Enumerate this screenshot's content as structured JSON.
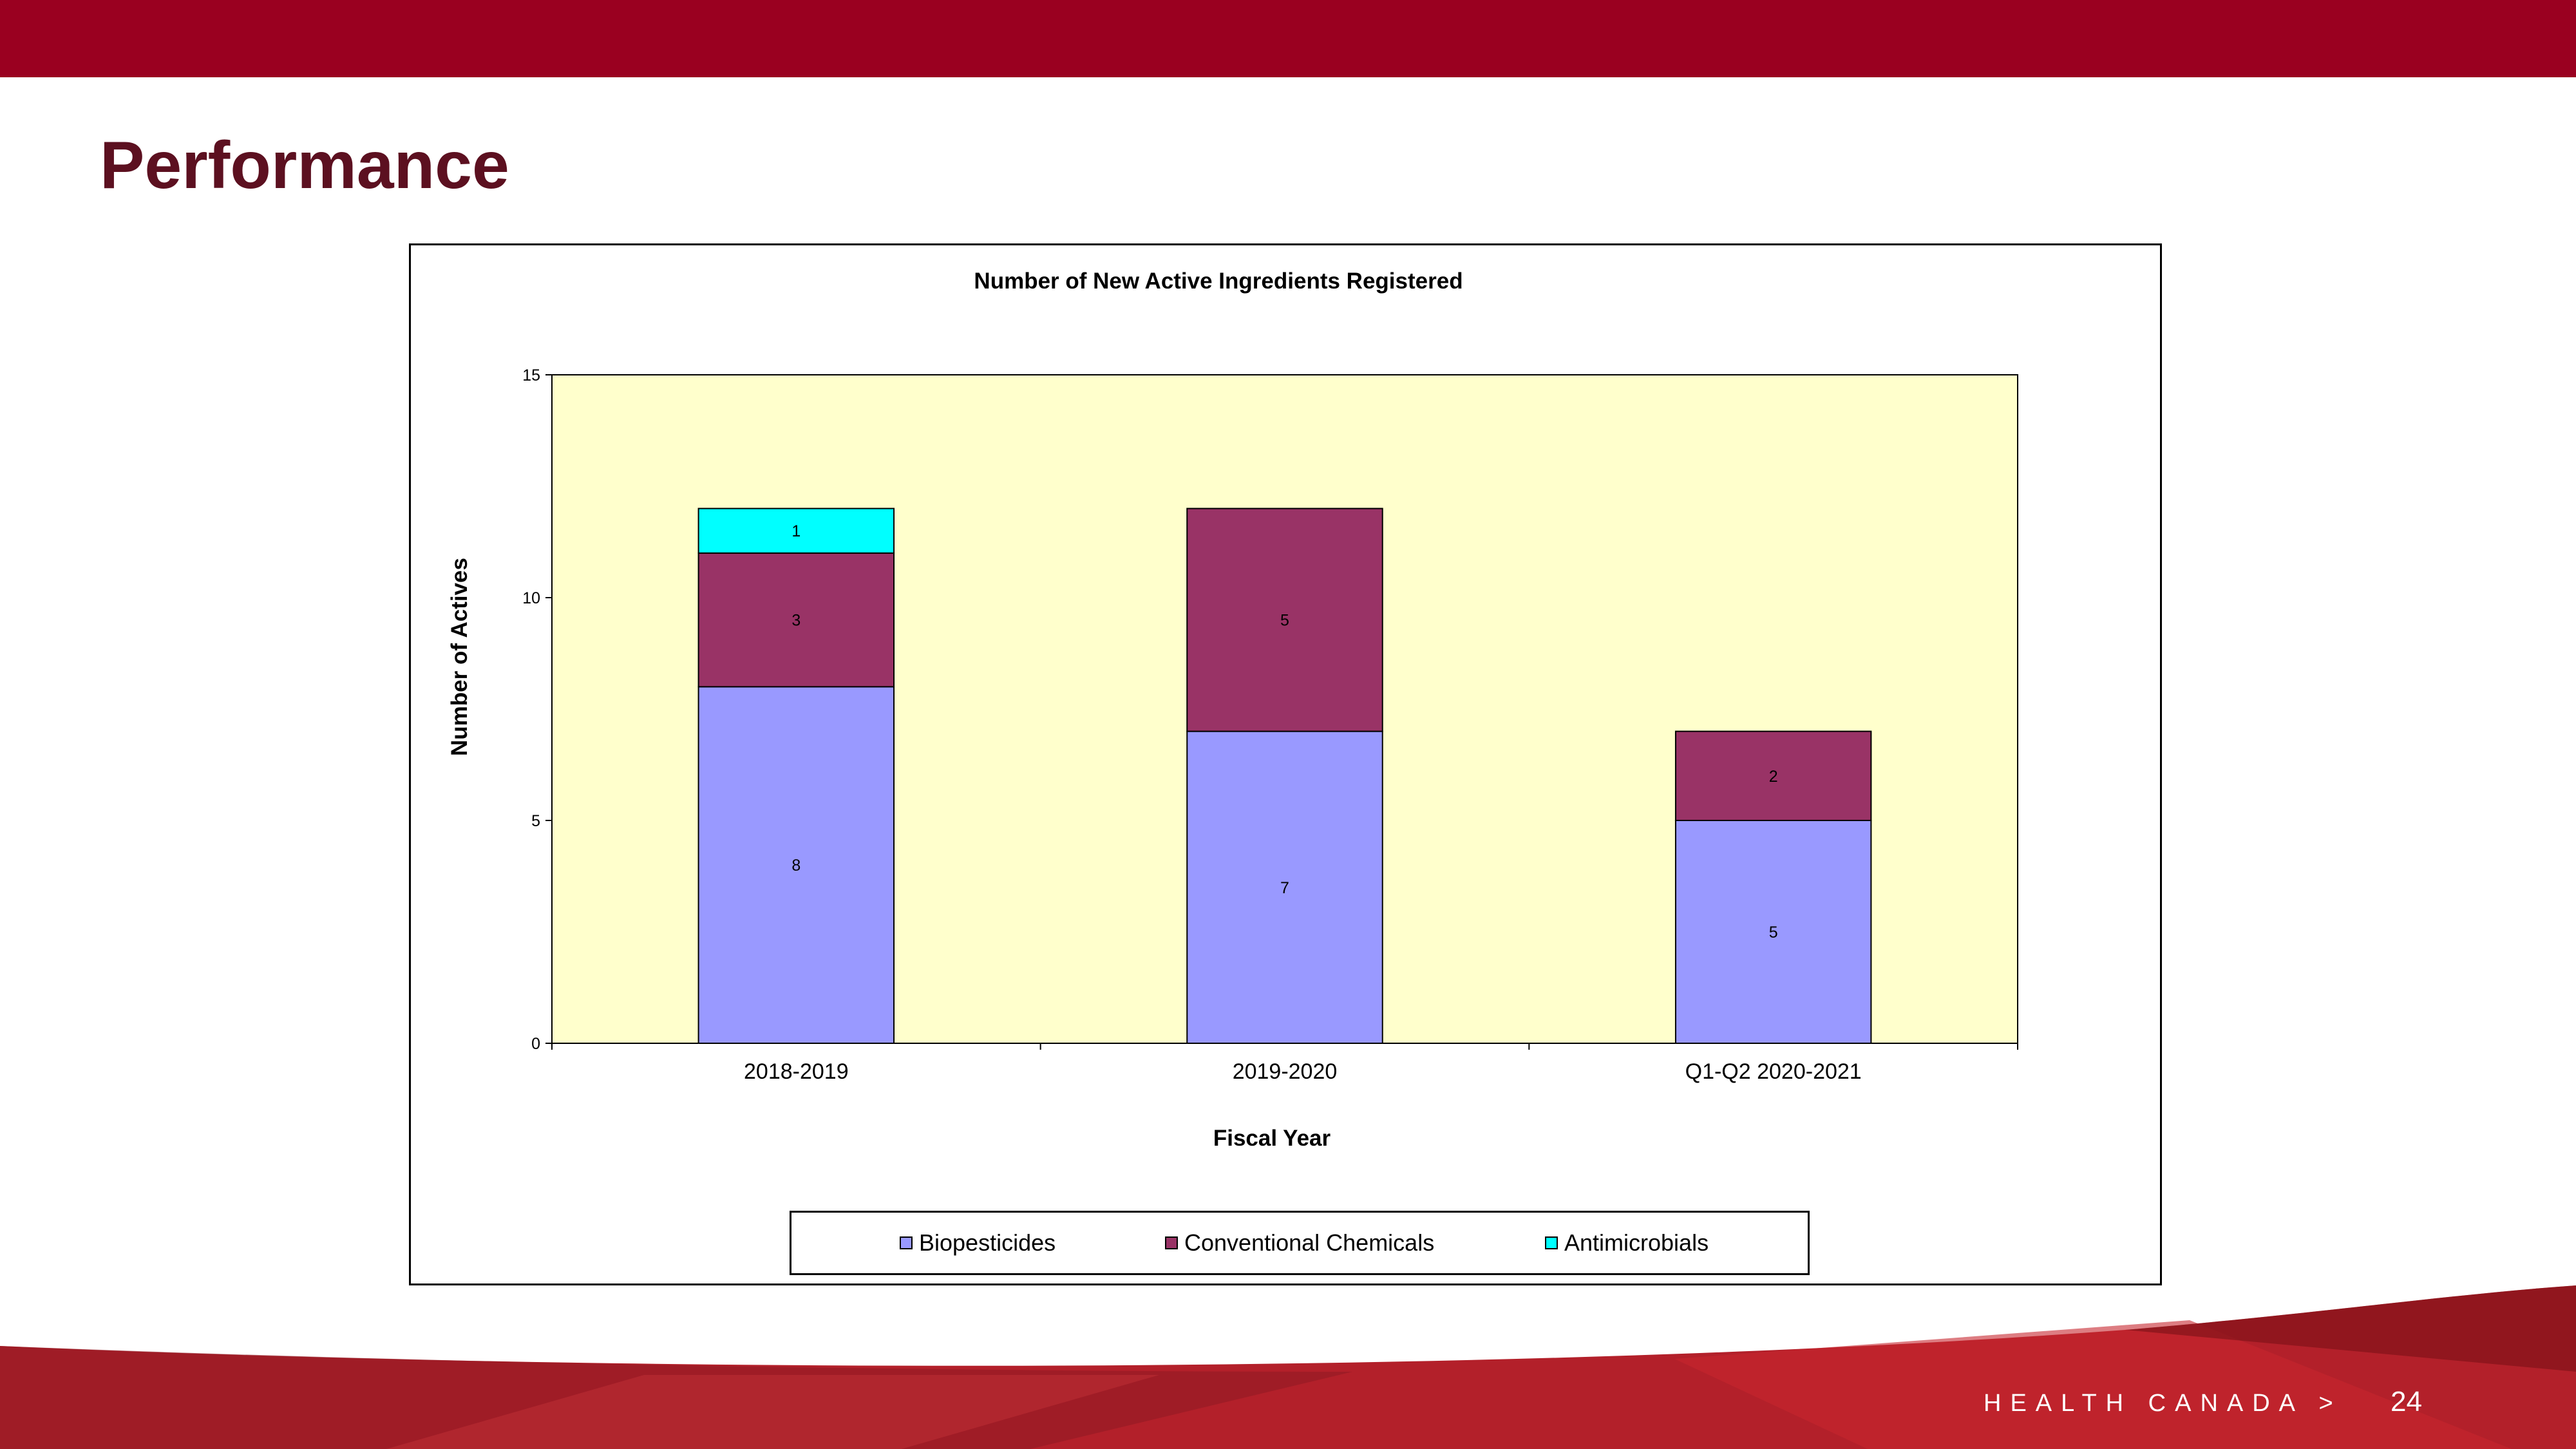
{
  "slide": {
    "title": "Performance",
    "footer_brand": "HEALTH CANADA >",
    "page_number": "24"
  },
  "colors": {
    "top_bar": "#9a0020",
    "title": "#5c1020",
    "plot_background": "#ffffcc",
    "footer_red": "#b3202a"
  },
  "chart_data": {
    "type": "bar",
    "stacked": true,
    "title": "Number of New Active Ingredients Registered",
    "xlabel": "Fiscal Year",
    "ylabel": "Number of Actives",
    "ylim": [
      0,
      15
    ],
    "yticks": [
      "0",
      "5",
      "10",
      "15"
    ],
    "categories": [
      "2018-2019",
      "2019-2020",
      "Q1-Q2 2020-2021"
    ],
    "series": [
      {
        "name": "Biopesticides",
        "color": "#9999ff",
        "values": [
          8,
          7,
          5
        ]
      },
      {
        "name": "Conventional Chemicals",
        "color": "#993366",
        "values": [
          3,
          5,
          2
        ]
      },
      {
        "name": "Antimicrobials",
        "color": "#00ffff",
        "values": [
          1,
          null,
          null
        ]
      }
    ],
    "legend_position": "bottom",
    "grid": false
  }
}
